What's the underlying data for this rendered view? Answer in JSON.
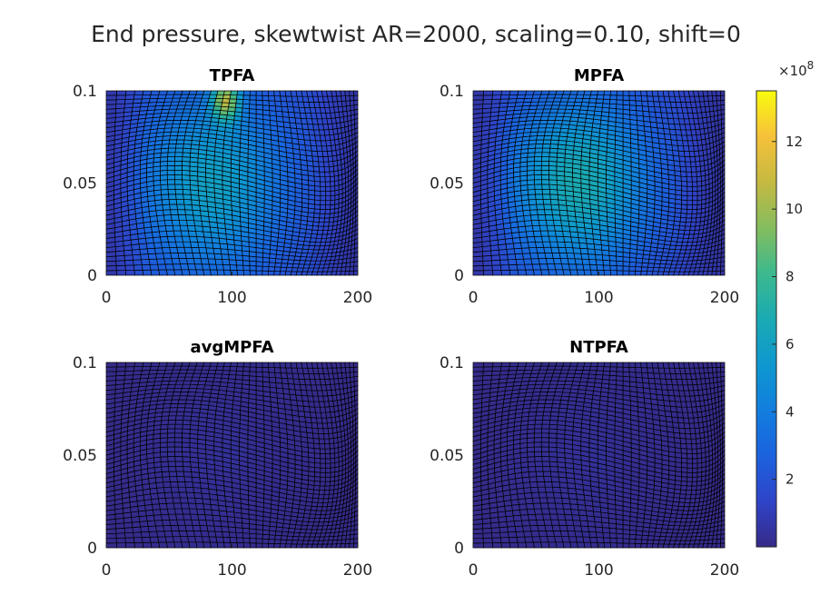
{
  "figure": {
    "title": "End pressure, skewtwist AR=2000, scaling=0.10, shift=0"
  },
  "chart_data": {
    "type": "heatmap",
    "title": "End pressure, skewtwist AR=2000, scaling=0.10, shift=0",
    "colormap": "parula",
    "grid": "curvilinear skewtwist grid, 40 x 40 cells",
    "x_range": [
      0,
      200
    ],
    "y_range": [
      0,
      0.1
    ],
    "x_ticks": [
      "0",
      "100",
      "200"
    ],
    "y_ticks": [
      "0",
      "0.05",
      "0.1"
    ],
    "colorbar": {
      "multiplier_base": "×10",
      "multiplier_exp": "8",
      "min": 0.0,
      "max": 13.5,
      "ticks": [
        2,
        4,
        6,
        8,
        10,
        12
      ],
      "tick_labels": [
        "2",
        "4",
        "6",
        "8",
        "10",
        "12"
      ]
    },
    "panels": [
      {
        "name": "TPFA",
        "background_value": 3.5,
        "peak_value": 13.4,
        "peak_x": 95,
        "peak_y": 0.095,
        "center_value": 6.0
      },
      {
        "name": "MPFA",
        "background_value": 3.0,
        "peak_value": 6.8,
        "peak_x": 95,
        "peak_y": 0.045,
        "center_value": 6.8
      },
      {
        "name": "avgMPFA",
        "background_value": 0.2,
        "peak_value": 0.4,
        "peak_x": 100,
        "peak_y": 0.05,
        "center_value": 0.3
      },
      {
        "name": "NTPFA",
        "background_value": 0.2,
        "peak_value": 0.4,
        "peak_x": 100,
        "peak_y": 0.05,
        "center_value": 0.3
      }
    ]
  },
  "colors": {
    "grid_line": "#000000",
    "axis_text": "#262626"
  }
}
